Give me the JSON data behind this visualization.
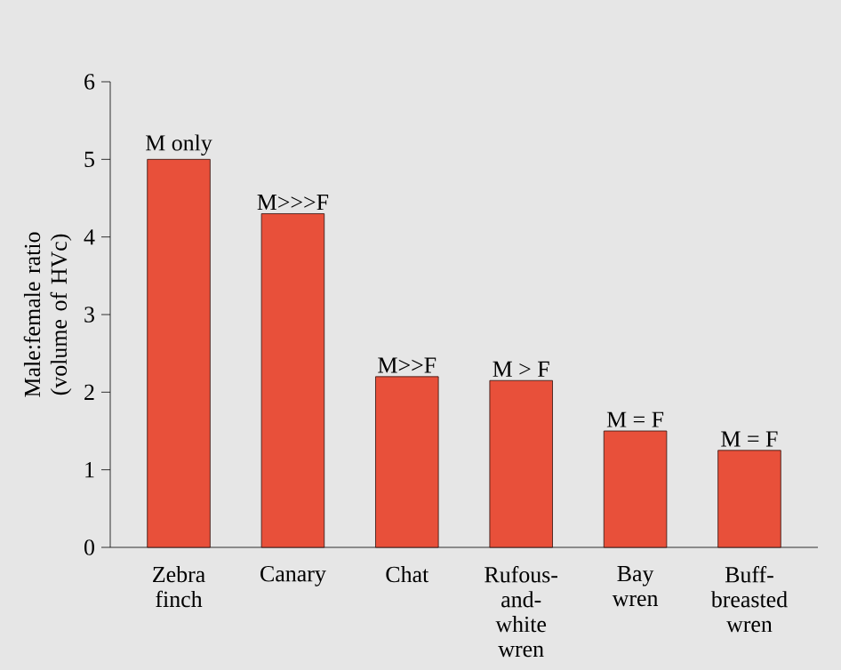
{
  "chart_data": {
    "type": "bar",
    "ylabel": "Male:female ratio (volume of HVc)",
    "categories": [
      "Zebra finch",
      "Canary",
      "Chat",
      "Rufous-and-white wren",
      "Bay wren",
      "Buff-breasted wren"
    ],
    "values": [
      5,
      4.3,
      2.2,
      2.15,
      1.5,
      1.25
    ],
    "color": "#e8503a",
    "ylim": [
      0,
      6
    ],
    "yticks": [
      0,
      1,
      2,
      3,
      4,
      5,
      6
    ],
    "annotations": [
      {
        "text": "M only",
        "x": "Zebra finch",
        "y": 5
      },
      {
        "text": "M>>>F",
        "x": "Canary",
        "y": 4.3
      },
      {
        "text": "M>>F",
        "x": "Chat",
        "y": 2.2
      },
      {
        "text": "M > F",
        "x": "Rufous-and-white wren",
        "y": 2.15
      },
      {
        "text": "M = F",
        "x": "Bay wren",
        "y": 1.5
      },
      {
        "text": "M = F",
        "x": "Buff-breasted wren",
        "y": 1.25
      }
    ]
  }
}
